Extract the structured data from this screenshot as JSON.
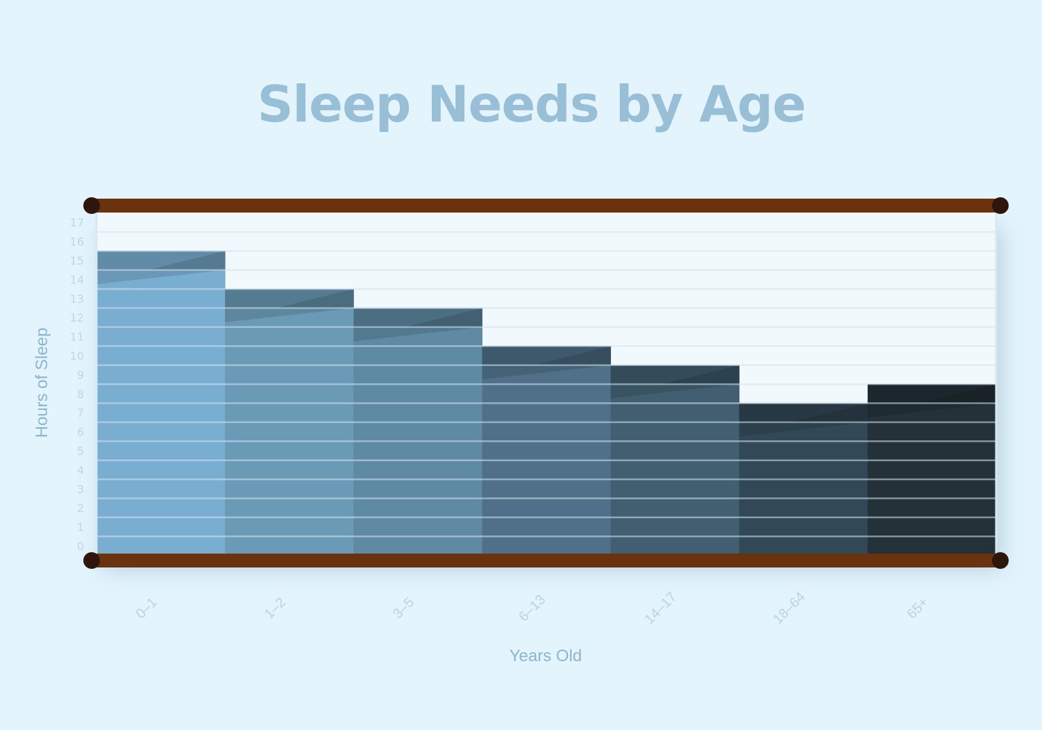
{
  "chart_data": {
    "type": "bar",
    "title": "Sleep Needs by Age",
    "xlabel": "Years Old",
    "ylabel": "Hours of Sleep",
    "categories": [
      "0–1",
      "1–2",
      "3–5",
      "6–13",
      "14–17",
      "18–64",
      "65+"
    ],
    "series": [
      {
        "values": [
          15.5,
          13.5,
          12.5,
          10.5,
          9.5,
          7.5,
          8.5
        ]
      }
    ],
    "recommended_minimum": [
      14.5,
      12.5,
      11.5,
      9.5,
      8.5,
      6.5,
      7.5
    ],
    "ylim": [
      0,
      17.5
    ],
    "yticks": [
      0,
      1,
      2,
      3,
      4,
      5,
      6,
      7,
      8,
      9,
      10,
      11,
      12,
      13,
      14,
      15,
      16,
      17
    ],
    "grid": true,
    "legend": "none",
    "colors": {
      "background": "#e3f4fd",
      "plot_background": "#f1f9fd",
      "gridline": "#d0e5f1",
      "title": "#98bfd5",
      "rail": "#6b3210",
      "rail_cap": "#2e160c",
      "bars": [
        "#7aaed0",
        "#6b9ab6",
        "#5f8aa3",
        "#4f7088",
        "#425f71",
        "#324857",
        "#243139"
      ]
    }
  }
}
